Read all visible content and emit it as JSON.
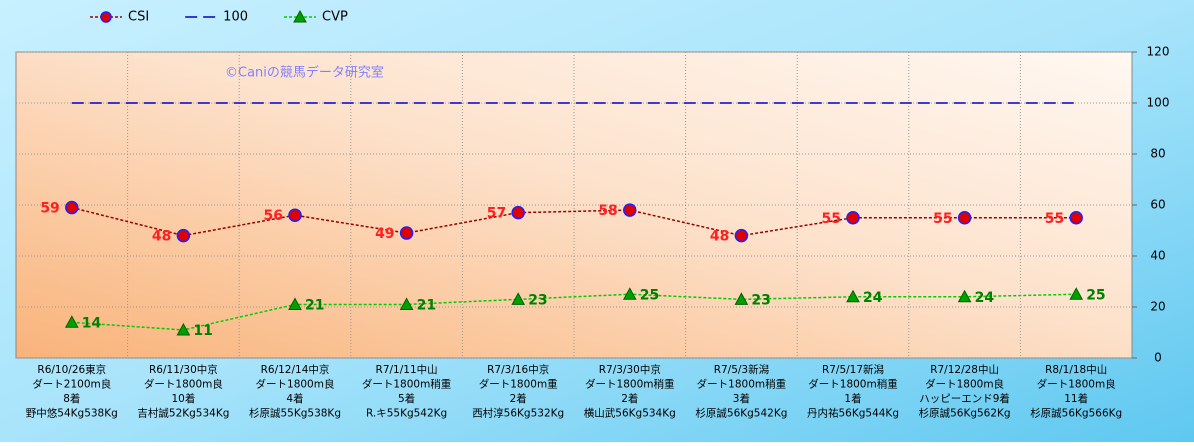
{
  "chart_data": {
    "type": "line",
    "watermark": "©Caniの競馬データ研究室",
    "categories": [
      [
        "R6/10/26東京",
        "ダート2100m良",
        "8着",
        "野中悠54Kg538Kg"
      ],
      [
        "R6/11/30中京",
        "ダート1800m良",
        "10着",
        "吉村誠52Kg534Kg"
      ],
      [
        "R6/12/14中京",
        "ダート1800m良",
        "4着",
        "杉原誠55Kg538Kg"
      ],
      [
        "R7/1/11中山",
        "ダート1800m稍重",
        "5着",
        "R.キ55Kg542Kg"
      ],
      [
        "R7/3/16中京",
        "ダート1800m重",
        "2着",
        "西村淳56Kg532Kg"
      ],
      [
        "R7/3/30中京",
        "ダート1800m稍重",
        "2着",
        "横山武56Kg534Kg"
      ],
      [
        "R7/5/3新潟",
        "ダート1800m稍重",
        "3着",
        "杉原誠56Kg542Kg"
      ],
      [
        "R7/5/17新潟",
        "ダート1800m稍重",
        "1着",
        "丹内祐56Kg544Kg"
      ],
      [
        "R7/12/28中山",
        "ダート1800m良",
        "ハッピーエンド9着",
        "杉原誠56Kg562Kg"
      ],
      [
        "R8/1/18中山",
        "ダート1800m良",
        "11着",
        "杉原誠56Kg566Kg"
      ]
    ],
    "series": [
      {
        "name": "CSI",
        "color": "#990000",
        "marker": "circle",
        "label_color": "#ff2020",
        "label_side": "left",
        "values": [
          59,
          48,
          56,
          49,
          57,
          58,
          48,
          55,
          55,
          55
        ]
      },
      {
        "name": "100",
        "color": "#0000cc",
        "marker": "none",
        "values": [
          100,
          100,
          100,
          100,
          100,
          100,
          100,
          100,
          100,
          100
        ]
      },
      {
        "name": "CVP",
        "color": "#00cc00",
        "marker": "triangle",
        "label_color": "#008000",
        "label_side": "right",
        "values": [
          14,
          11,
          21,
          21,
          23,
          25,
          23,
          24,
          24,
          25
        ]
      }
    ],
    "ylim": [
      0,
      120
    ],
    "yticks": [
      0,
      20,
      40,
      60,
      80,
      100,
      120
    ],
    "grid": true,
    "legend": "top-left"
  }
}
